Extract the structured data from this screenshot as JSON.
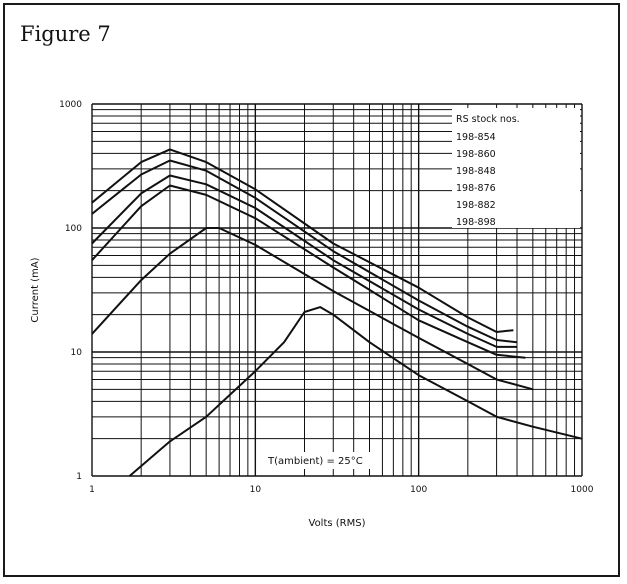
{
  "figure_title": "Figure 7",
  "chart_data": {
    "type": "line",
    "title": "",
    "xlabel": "Volts (RMS)",
    "ylabel": "Current (mA)",
    "x_scale": "log",
    "y_scale": "log",
    "xlim": [
      1,
      1000
    ],
    "ylim": [
      1,
      1000
    ],
    "grid": true,
    "x_ticks": [
      "1",
      "10",
      "100",
      "1000"
    ],
    "y_ticks": [
      "1",
      "10",
      "100",
      "1000"
    ],
    "legend_title": "RS stock nos.",
    "legend_items": [
      "198-854",
      "198-860",
      "198-848",
      "198-876",
      "198-882",
      "198-898"
    ],
    "annotation": "T(ambient) = 25°C",
    "series": [
      {
        "points": [
          [
            1,
            160
          ],
          [
            2,
            340
          ],
          [
            3,
            430
          ],
          [
            5,
            340
          ],
          [
            10,
            205
          ],
          [
            30,
            75
          ],
          [
            100,
            33
          ],
          [
            200,
            19
          ],
          [
            300,
            14.5
          ],
          [
            380,
            15
          ]
        ]
      },
      {
        "points": [
          [
            1,
            130
          ],
          [
            2,
            270
          ],
          [
            3,
            350
          ],
          [
            5,
            290
          ],
          [
            10,
            175
          ],
          [
            30,
            65
          ],
          [
            100,
            26
          ],
          [
            200,
            16
          ],
          [
            300,
            12.5
          ],
          [
            400,
            12
          ]
        ]
      },
      {
        "points": [
          [
            1,
            75
          ],
          [
            2,
            190
          ],
          [
            3,
            265
          ],
          [
            5,
            225
          ],
          [
            10,
            145
          ],
          [
            30,
            55
          ],
          [
            100,
            22
          ],
          [
            200,
            14
          ],
          [
            300,
            11
          ],
          [
            400,
            11
          ]
        ]
      },
      {
        "points": [
          [
            1,
            55
          ],
          [
            2,
            150
          ],
          [
            3,
            220
          ],
          [
            5,
            185
          ],
          [
            10,
            120
          ],
          [
            30,
            48
          ],
          [
            100,
            18
          ],
          [
            200,
            12
          ],
          [
            300,
            9.5
          ],
          [
            450,
            9
          ]
        ]
      },
      {
        "points": [
          [
            1,
            14
          ],
          [
            2,
            38
          ],
          [
            3,
            62
          ],
          [
            5,
            100
          ],
          [
            6,
            100
          ],
          [
            10,
            73
          ],
          [
            30,
            31
          ],
          [
            100,
            13
          ],
          [
            200,
            8
          ],
          [
            300,
            6
          ],
          [
            500,
            5
          ]
        ]
      },
      {
        "points": [
          [
            1.7,
            1
          ],
          [
            3,
            1.9
          ],
          [
            5,
            3
          ],
          [
            10,
            7
          ],
          [
            15,
            12
          ],
          [
            20,
            21
          ],
          [
            25,
            23
          ],
          [
            30,
            20
          ],
          [
            50,
            12
          ],
          [
            100,
            6.5
          ],
          [
            200,
            4
          ],
          [
            300,
            3
          ],
          [
            500,
            2.5
          ],
          [
            1000,
            2
          ]
        ]
      }
    ]
  }
}
